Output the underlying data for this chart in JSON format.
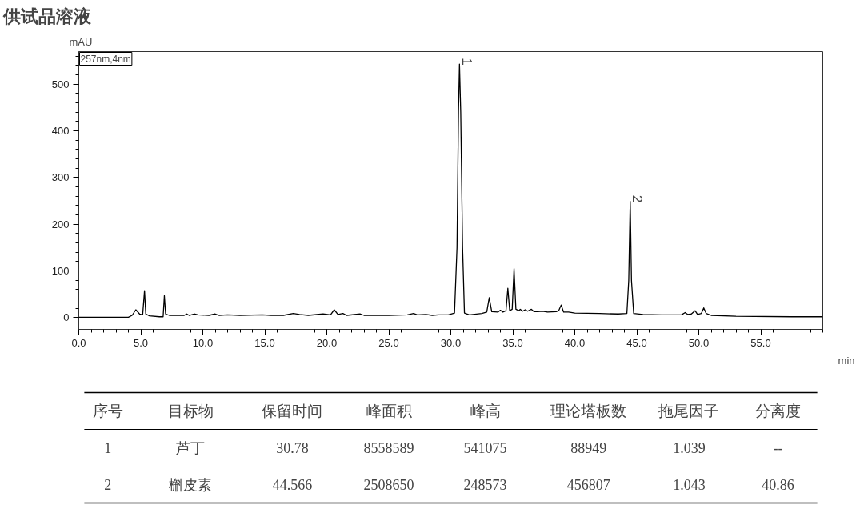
{
  "chart_data": {
    "type": "line",
    "title": "供试品溶液",
    "xlabel": "min",
    "ylabel": "mAU",
    "xlim": [
      0,
      60
    ],
    "ylim": [
      -25,
      570
    ],
    "xticks": [
      {
        "value": 0,
        "label": "0.0"
      },
      {
        "value": 5,
        "label": "5.0"
      },
      {
        "value": 10,
        "label": "10.0"
      },
      {
        "value": 15,
        "label": "15.0"
      },
      {
        "value": 20,
        "label": "20.0"
      },
      {
        "value": 25,
        "label": "25.0"
      },
      {
        "value": 30,
        "label": "30.0"
      },
      {
        "value": 35,
        "label": "35.0"
      },
      {
        "value": 40,
        "label": "40.0"
      },
      {
        "value": 45,
        "label": "45.0"
      },
      {
        "value": 50,
        "label": "50.0"
      },
      {
        "value": 55,
        "label": "55.0"
      }
    ],
    "yticks": [
      0,
      100,
      200,
      300,
      400,
      500
    ],
    "grid": false,
    "marker": "none",
    "line_style": "solid",
    "x": [
      0,
      4.0,
      4.3,
      4.6,
      4.9,
      5.15,
      5.3,
      5.4,
      5.7,
      6.5,
      6.8,
      6.9,
      7.0,
      7.3,
      8.5,
      8.7,
      8.9,
      9.3,
      9.6,
      10.5,
      11.0,
      11.3,
      12.0,
      13.0,
      14.8,
      15.5,
      16.5,
      17.3,
      17.8,
      18.5,
      19.7,
      20.3,
      20.6,
      20.9,
      21.3,
      21.6,
      22.7,
      23.0,
      25.0,
      26.5,
      27.0,
      27.3,
      28.0,
      28.5,
      29.0,
      29.8,
      30.3,
      30.5,
      30.62,
      30.7,
      30.8,
      30.95,
      31.1,
      31.5,
      32.5,
      32.9,
      33.1,
      33.3,
      33.8,
      34.0,
      34.2,
      34.45,
      34.6,
      34.75,
      34.95,
      35.1,
      35.25,
      35.5,
      35.6,
      35.8,
      36.0,
      36.2,
      36.5,
      36.7,
      37.0,
      37.4,
      37.8,
      38.5,
      38.7,
      38.9,
      39.1,
      39.5,
      40.0,
      42.0,
      43.5,
      44.2,
      44.35,
      44.47,
      44.57,
      44.75,
      45.5,
      47.0,
      48.6,
      48.9,
      49.1,
      49.4,
      49.7,
      49.9,
      50.2,
      50.4,
      50.6,
      51.0,
      53.0,
      57.5,
      60
    ],
    "series": [
      {
        "color": "#000000",
        "values": [
          1,
          1,
          5,
          17,
          8,
          6,
          58,
          8,
          4,
          2,
          2,
          47,
          8,
          5,
          5,
          8,
          5,
          8,
          6,
          5,
          8,
          5,
          6,
          5,
          6,
          5,
          5,
          9,
          7,
          5,
          8,
          6,
          17,
          7,
          9,
          5,
          8,
          5,
          5,
          6,
          9,
          6,
          7,
          5,
          6,
          6,
          10,
          150,
          440,
          543,
          440,
          150,
          10,
          6,
          9,
          12,
          43,
          13,
          12,
          16,
          12,
          15,
          63,
          15,
          18,
          105,
          18,
          15,
          18,
          14,
          17,
          14,
          18,
          13,
          13,
          14,
          12,
          13,
          15,
          27,
          12,
          12,
          10,
          9,
          8,
          9,
          80,
          249,
          80,
          9,
          7,
          6,
          6,
          11,
          7,
          8,
          15,
          7,
          9,
          21,
          9,
          5,
          3,
          2,
          2
        ]
      }
    ],
    "annotations": [
      "257nm,4nm",
      {
        "text": "1",
        "x": 30.78,
        "y": 543
      },
      {
        "text": "2",
        "x": 44.566,
        "y": 249
      },
      "序号",
      "目标物",
      "保留时间",
      "峰面积",
      "峰高",
      "理论塔板数",
      "拖尾因子",
      "分离度",
      "1",
      "芦丁",
      "30.78",
      "8558589",
      "541075",
      "88949",
      "1.039",
      "--",
      "2",
      "槲皮素",
      "44.566",
      "2508650",
      "248573",
      "456807",
      "1.043",
      "40.86"
    ]
  }
}
